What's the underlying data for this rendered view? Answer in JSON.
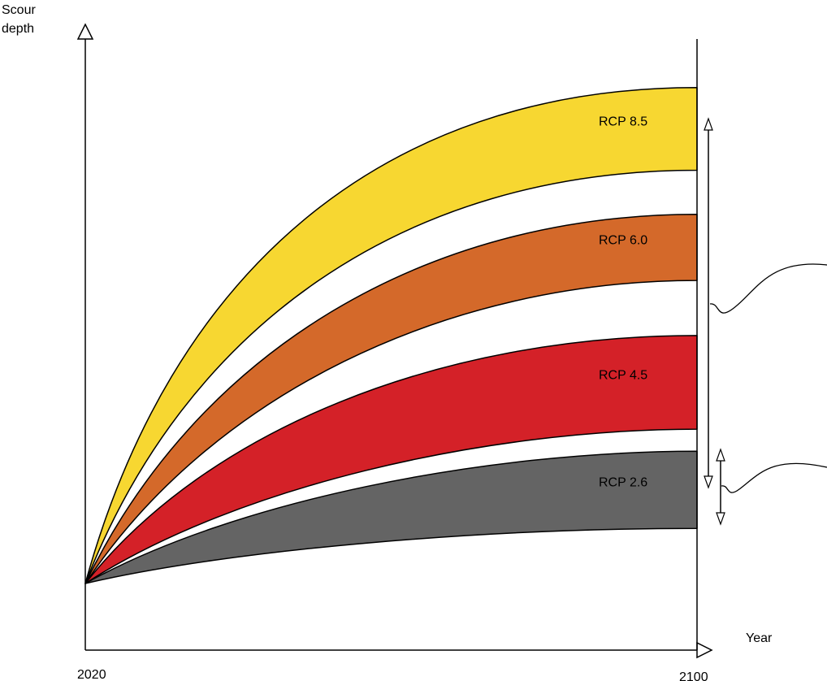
{
  "chart_data": {
    "type": "area",
    "y_axis_label": [
      "Scour",
      "depth"
    ],
    "x_axis_label": "Year",
    "x_ticks": [
      "2020",
      "2100"
    ],
    "xlim": [
      2020,
      2100
    ],
    "y_scale": "qualitative (no numeric ticks)",
    "grid": false,
    "legend": "none (bands labelled inline at right)",
    "series": [
      {
        "name": "RCP 8.5",
        "color": "#F7D731",
        "x": [
          2020,
          2100
        ],
        "upper_end_fraction": 0.9,
        "lower_end_fraction": 0.75,
        "upper_shape": 0.23,
        "lower_shape": 0.27
      },
      {
        "name": "RCP 6.0",
        "color": "#D4692A",
        "x": [
          2020,
          2100
        ],
        "upper_end_fraction": 0.67,
        "lower_end_fraction": 0.55,
        "upper_shape": 0.3,
        "lower_shape": 0.34
      },
      {
        "name": "RCP 4.5",
        "color": "#D42128",
        "x": [
          2020,
          2100
        ],
        "upper_end_fraction": 0.45,
        "lower_end_fraction": 0.28,
        "upper_shape": 0.33,
        "lower_shape": 0.4
      },
      {
        "name": "RCP 2.6",
        "color": "#646464",
        "x": [
          2020,
          2100
        ],
        "upper_end_fraction": 0.24,
        "lower_end_fraction": 0.1,
        "upper_shape": 0.4,
        "lower_shape": 0.4
      }
    ]
  }
}
